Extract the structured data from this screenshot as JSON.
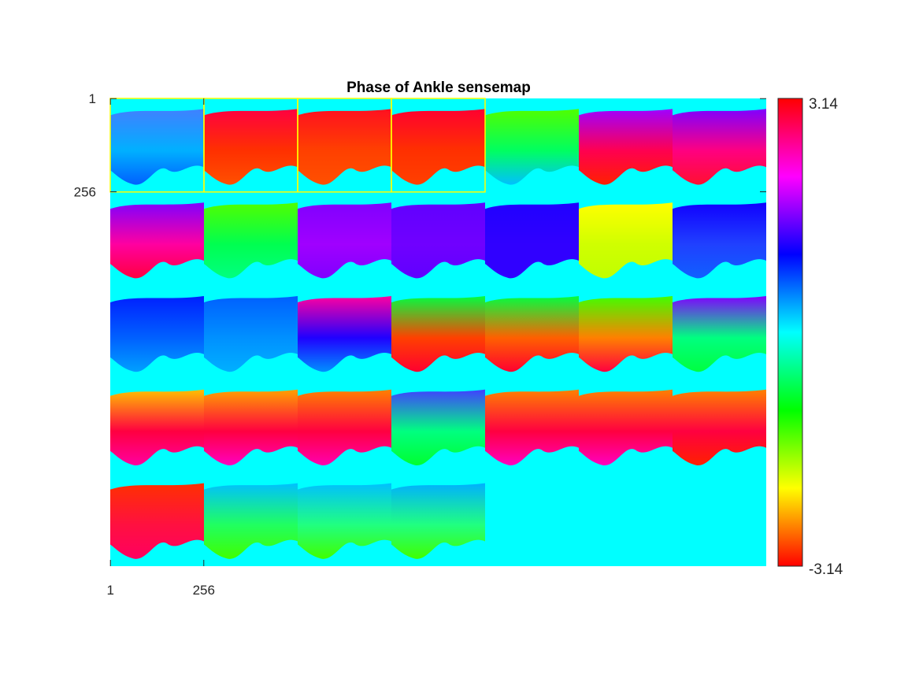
{
  "chart_data": {
    "type": "heatmap",
    "title": "Phase of Ankle sensemap",
    "xlabel": "",
    "ylabel": "",
    "grid": false,
    "tile_size": 256,
    "tiles_per_row": 7,
    "tile_rows": 5,
    "tile_count": 32,
    "x_ticks": [
      1,
      256
    ],
    "y_ticks": [
      1,
      256
    ],
    "x_tick_labels": [
      "1",
      "256"
    ],
    "y_tick_labels": [
      "1",
      "256"
    ],
    "colorbar": {
      "min": -3.14,
      "max": 3.14,
      "min_label": "-3.14",
      "max_label": "3.14",
      "colormap": "hsv",
      "placement": "right"
    },
    "background_color": "#00ffff",
    "highlight_color": "#ffff00",
    "highlighted_tiles": [
      0,
      1,
      2,
      3
    ],
    "tiles": [
      {
        "top": "#4080ff",
        "bottom": "#00b0ff",
        "below": "#0060ff"
      },
      {
        "top": "#ff0040",
        "bottom": "#ff3000",
        "below": "#ff5000"
      },
      {
        "top": "#ff1020",
        "bottom": "#ff4000",
        "below": "#ff5000"
      },
      {
        "top": "#ff0030",
        "bottom": "#ff3000",
        "below": "#ff4000"
      },
      {
        "top": "#50ff00",
        "bottom": "#00ff60",
        "below": "#00c0ff"
      },
      {
        "top": "#a000ff",
        "bottom": "#ff0050",
        "below": "#ff2000"
      },
      {
        "top": "#8000ff",
        "bottom": "#ff0080",
        "below": "#ff1030"
      },
      {
        "top": "#8000ff",
        "bottom": "#ff00a0",
        "below": "#ff0040"
      },
      {
        "top": "#50ff00",
        "bottom": "#00ff50",
        "below": "#00ff80"
      },
      {
        "top": "#8000ff",
        "bottom": "#a000ff",
        "below": "#8000ff"
      },
      {
        "top": "#6000ff",
        "bottom": "#7000ff",
        "below": "#6000ff"
      },
      {
        "top": "#2000ff",
        "bottom": "#3000ff",
        "below": "#3000ff"
      },
      {
        "top": "#ffff00",
        "bottom": "#d0ff00",
        "below": "#c0ff00"
      },
      {
        "top": "#1000ff",
        "bottom": "#2040ff",
        "below": "#1060ff"
      },
      {
        "top": "#0020ff",
        "bottom": "#0060ff",
        "below": "#00a0ff"
      },
      {
        "top": "#0060ff",
        "bottom": "#0090ff",
        "below": "#00b0ff"
      },
      {
        "top": "#ff00a0",
        "bottom": "#2000ff",
        "below": "#0090ff"
      },
      {
        "top": "#00ff40",
        "bottom": "#ff4000",
        "below": "#ff0030"
      },
      {
        "top": "#00ff40",
        "bottom": "#ff6000",
        "below": "#ff0030"
      },
      {
        "top": "#40ff00",
        "bottom": "#ff8000",
        "below": "#ff0040"
      },
      {
        "top": "#8000ff",
        "bottom": "#00ff80",
        "below": "#00ff40"
      },
      {
        "top": "#ffc000",
        "bottom": "#ff0040",
        "below": "#ff00a0"
      },
      {
        "top": "#ffa000",
        "bottom": "#ff0040",
        "below": "#ff00c0"
      },
      {
        "top": "#ff8000",
        "bottom": "#ff0040",
        "below": "#ff00b0"
      },
      {
        "top": "#4040ff",
        "bottom": "#00ff80",
        "below": "#00ff30"
      },
      {
        "top": "#ff8000",
        "bottom": "#ff0040",
        "below": "#ff00c0"
      },
      {
        "top": "#ff8000",
        "bottom": "#ff0040",
        "below": "#ff00c0"
      },
      {
        "top": "#ff8000",
        "bottom": "#ff0040",
        "below": "#ff2000"
      },
      {
        "top": "#ff3000",
        "bottom": "#ff1040",
        "below": "#ff0060"
      },
      {
        "top": "#00c0ff",
        "bottom": "#20ff60",
        "below": "#40ff00"
      },
      {
        "top": "#00c0ff",
        "bottom": "#20ff80",
        "below": "#40ff00"
      },
      {
        "top": "#00b0ff",
        "bottom": "#20ff80",
        "below": "#40ff00"
      }
    ]
  }
}
